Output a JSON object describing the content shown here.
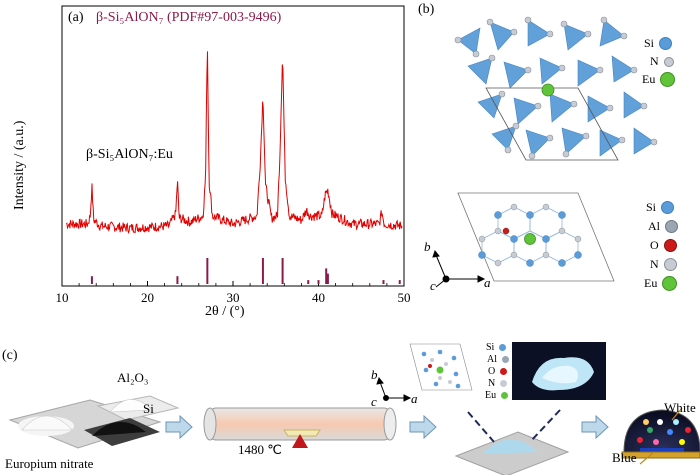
{
  "panel_a": {
    "label": "(a)",
    "reference_title": "β-Si₅AlON₇ (PDF#97-003-9496)",
    "sample_label": "β-Si₅AlON₇:Eu",
    "colors": {
      "pattern": "#e00000",
      "reference": "#8b1a4a"
    }
  },
  "chart_data": {
    "type": "line",
    "title": "",
    "xlabel": "2θ / (°)",
    "ylabel": "Intensity / (a.u.)",
    "xlim": [
      10,
      50
    ],
    "xticks": [
      10,
      20,
      30,
      40,
      50
    ],
    "grid": false,
    "series": [
      {
        "name": "β-Si₅AlON₇:Eu",
        "points": [
          [
            10.5,
            0.06
          ],
          [
            13.0,
            0.06
          ],
          [
            13.3,
            0.1
          ],
          [
            13.5,
            0.25
          ],
          [
            13.7,
            0.08
          ],
          [
            14.5,
            0.05
          ],
          [
            18.0,
            0.04
          ],
          [
            22.5,
            0.05
          ],
          [
            23.3,
            0.11
          ],
          [
            23.5,
            0.28
          ],
          [
            23.7,
            0.09
          ],
          [
            25.0,
            0.07
          ],
          [
            26.5,
            0.1
          ],
          [
            26.8,
            0.3
          ],
          [
            27.0,
            1.0
          ],
          [
            27.2,
            0.28
          ],
          [
            27.6,
            0.1
          ],
          [
            30.0,
            0.06
          ],
          [
            32.8,
            0.1
          ],
          [
            33.2,
            0.38
          ],
          [
            33.5,
            0.71
          ],
          [
            33.8,
            0.25
          ],
          [
            34.5,
            0.09
          ],
          [
            35.2,
            0.1
          ],
          [
            35.5,
            0.42
          ],
          [
            35.8,
            0.92
          ],
          [
            36.1,
            0.3
          ],
          [
            36.6,
            0.1
          ],
          [
            38.0,
            0.08
          ],
          [
            38.6,
            0.13
          ],
          [
            39.0,
            0.1
          ],
          [
            40.4,
            0.1
          ],
          [
            40.8,
            0.21
          ],
          [
            41.1,
            0.23
          ],
          [
            41.6,
            0.11
          ],
          [
            44.0,
            0.06
          ],
          [
            47.1,
            0.06
          ],
          [
            47.4,
            0.12
          ],
          [
            47.7,
            0.06
          ],
          [
            49.8,
            0.05
          ]
        ]
      },
      {
        "name": "β-Si₅AlON₇ (PDF#97-003-9496)",
        "type": "stick",
        "sticks": [
          [
            13.5,
            0.3
          ],
          [
            23.5,
            0.3
          ],
          [
            27.0,
            1.0
          ],
          [
            33.5,
            1.0
          ],
          [
            35.8,
            1.0
          ],
          [
            38.8,
            0.15
          ],
          [
            40.0,
            0.15
          ],
          [
            40.9,
            0.6
          ],
          [
            41.1,
            0.4
          ],
          [
            47.6,
            0.15
          ],
          [
            49.5,
            0.15
          ]
        ]
      }
    ]
  },
  "panel_b": {
    "label": "(b)",
    "legend_top": [
      {
        "text": "Si",
        "color": "#5a9bd8"
      },
      {
        "text": "N",
        "color": "#c7ccd4"
      },
      {
        "text": "Eu",
        "color": "#5fc43a"
      }
    ],
    "legend_bottom": [
      {
        "text": "Si",
        "color": "#5a9bd8"
      },
      {
        "text": "Al",
        "color": "#9aa6b4"
      },
      {
        "text": "O",
        "color": "#cc1a1a"
      },
      {
        "text": "N",
        "color": "#c7ccd4"
      },
      {
        "text": "Eu",
        "color": "#5fc43a"
      }
    ],
    "axes": {
      "a": "a",
      "b": "b",
      "c": "c"
    }
  },
  "panel_c": {
    "label": "(c)",
    "al2o3": "Al₂O₃",
    "si": "Si",
    "europium_nitrate": "Europium nitrate",
    "temperature": "1480 ℃",
    "blue": "Blue",
    "white": "White",
    "legend": [
      {
        "text": "Si",
        "color": "#5a9bd8"
      },
      {
        "text": "Al",
        "color": "#9aa6b4"
      },
      {
        "text": "O",
        "color": "#cc1a1a"
      },
      {
        "text": "N",
        "color": "#c7ccd4"
      },
      {
        "text": "Eu",
        "color": "#5fc43a"
      }
    ],
    "axes": {
      "a": "a",
      "b": "b",
      "c": "c"
    }
  }
}
